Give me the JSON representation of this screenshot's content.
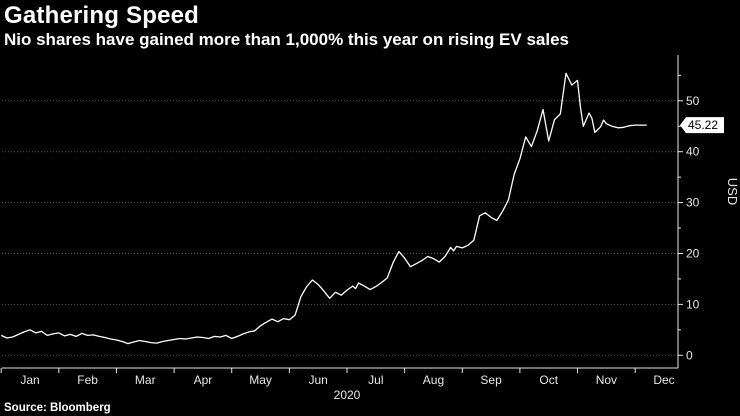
{
  "header": {
    "title": "Gathering Speed",
    "subtitle": "Nio shares have gained more than 1,000% this year on rising EV sales"
  },
  "footer": {
    "source": "Source: Bloomberg"
  },
  "colors": {
    "background": "#000000",
    "line": "#ffffff",
    "grid": "#5a5a5a",
    "text": "#e6e6e6"
  },
  "chart_data": {
    "type": "line",
    "title": "Gathering Speed",
    "subtitle": "Nio shares have gained more than 1,000% this year on rising EV sales",
    "ylabel": "USD",
    "xlabel": "2020",
    "ylim": [
      -2.5,
      59
    ],
    "yticks": [
      0,
      10,
      20,
      30,
      40,
      50
    ],
    "x_ticks": [
      "Jan",
      "Feb",
      "Mar",
      "Apr",
      "May",
      "Jun",
      "Jul",
      "Aug",
      "Sep",
      "Oct",
      "Nov",
      "Dec"
    ],
    "x_range": [
      0,
      11.6
    ],
    "grid": "horizontal-dotted",
    "last_value_label": "45.22",
    "series": [
      {
        "values_note": "x = month index (0=Jan 1, 1=Feb 1, ...), y = share price in USD",
        "x": [
          0.0,
          0.1,
          0.2,
          0.3,
          0.4,
          0.5,
          0.6,
          0.7,
          0.8,
          0.9,
          1.0,
          1.1,
          1.2,
          1.3,
          1.4,
          1.5,
          1.6,
          1.7,
          1.8,
          1.9,
          2.0,
          2.1,
          2.2,
          2.3,
          2.4,
          2.5,
          2.6,
          2.7,
          2.8,
          2.9,
          3.0,
          3.1,
          3.2,
          3.3,
          3.4,
          3.5,
          3.6,
          3.7,
          3.8,
          3.9,
          4.0,
          4.1,
          4.2,
          4.3,
          4.4,
          4.5,
          4.6,
          4.7,
          4.8,
          4.9,
          5.0,
          5.1,
          5.2,
          5.3,
          5.4,
          5.5,
          5.6,
          5.7,
          5.8,
          5.9,
          6.0,
          6.1,
          6.15,
          6.2,
          6.3,
          6.4,
          6.5,
          6.6,
          6.7,
          6.8,
          6.9,
          7.0,
          7.1,
          7.2,
          7.3,
          7.4,
          7.5,
          7.6,
          7.7,
          7.8,
          7.85,
          7.9,
          8.0,
          8.1,
          8.2,
          8.3,
          8.4,
          8.5,
          8.6,
          8.7,
          8.8,
          8.9,
          9.0,
          9.1,
          9.2,
          9.3,
          9.4,
          9.5,
          9.6,
          9.7,
          9.8,
          9.9,
          10.0,
          10.05,
          10.1,
          10.2,
          10.25,
          10.3,
          10.4,
          10.45,
          10.5,
          10.6,
          10.7,
          10.8,
          10.9,
          11.0,
          11.1,
          11.2
        ],
        "y": [
          3.9,
          3.4,
          3.6,
          4.1,
          4.6,
          5.0,
          4.4,
          4.7,
          3.9,
          4.2,
          4.4,
          3.8,
          4.1,
          3.7,
          4.3,
          3.9,
          4.0,
          3.7,
          3.5,
          3.2,
          3.0,
          2.7,
          2.3,
          2.6,
          2.9,
          2.7,
          2.5,
          2.4,
          2.7,
          2.9,
          3.1,
          3.3,
          3.2,
          3.4,
          3.6,
          3.5,
          3.3,
          3.7,
          3.6,
          3.9,
          3.3,
          3.7,
          4.2,
          4.6,
          4.8,
          5.8,
          6.5,
          7.1,
          6.6,
          7.2,
          7.0,
          7.9,
          11.5,
          13.5,
          14.8,
          13.9,
          12.6,
          11.2,
          12.4,
          11.8,
          12.8,
          13.6,
          13.1,
          14.2,
          13.6,
          12.9,
          13.5,
          14.3,
          15.2,
          18.2,
          20.4,
          19.1,
          17.4,
          18.0,
          18.6,
          19.4,
          19.0,
          18.3,
          19.4,
          21.2,
          20.5,
          21.4,
          21.1,
          21.6,
          22.6,
          27.4,
          28.0,
          27.1,
          26.5,
          28.3,
          30.5,
          35.5,
          38.6,
          42.9,
          41.0,
          44.1,
          48.3,
          42.1,
          46.3,
          47.4,
          55.4,
          53.1,
          54.0,
          48.8,
          45.0,
          47.6,
          46.5,
          43.8,
          44.9,
          46.2,
          45.5,
          45.0,
          44.7,
          44.8,
          45.1,
          45.22,
          45.22,
          45.22
        ]
      }
    ]
  }
}
